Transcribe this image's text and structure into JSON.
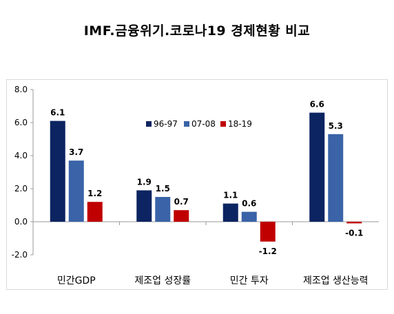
{
  "chart_data": {
    "type": "bar",
    "title": "IMF.금융위기.코로나19  경제현황  비교",
    "categories": [
      "민간GDP",
      "제조업 성장률",
      "민간 투자",
      "제조업 생산능력"
    ],
    "series": [
      {
        "name": "96-97",
        "color": "#0c2461",
        "values": [
          6.1,
          1.9,
          1.1,
          6.6
        ]
      },
      {
        "name": "07-08",
        "color": "#3a63a8",
        "values": [
          3.7,
          1.5,
          0.6,
          5.3
        ]
      },
      {
        "name": "18-19",
        "color": "#c00000",
        "values": [
          1.2,
          0.7,
          -1.2,
          -0.1
        ]
      }
    ],
    "value_labels": [
      [
        "6.1",
        "1.9",
        "1.1",
        "6.6"
      ],
      [
        "3.7",
        "1.5",
        "0.6",
        "5.3"
      ],
      [
        "1.2",
        "0.7",
        "-1.2",
        "-0.1"
      ]
    ],
    "yticks": [
      "8.0",
      "6.0",
      "4.0",
      "2.0",
      "0.0",
      "-2.0"
    ],
    "ylim": [
      -2,
      8
    ],
    "grid": false,
    "legend": "top-center"
  }
}
